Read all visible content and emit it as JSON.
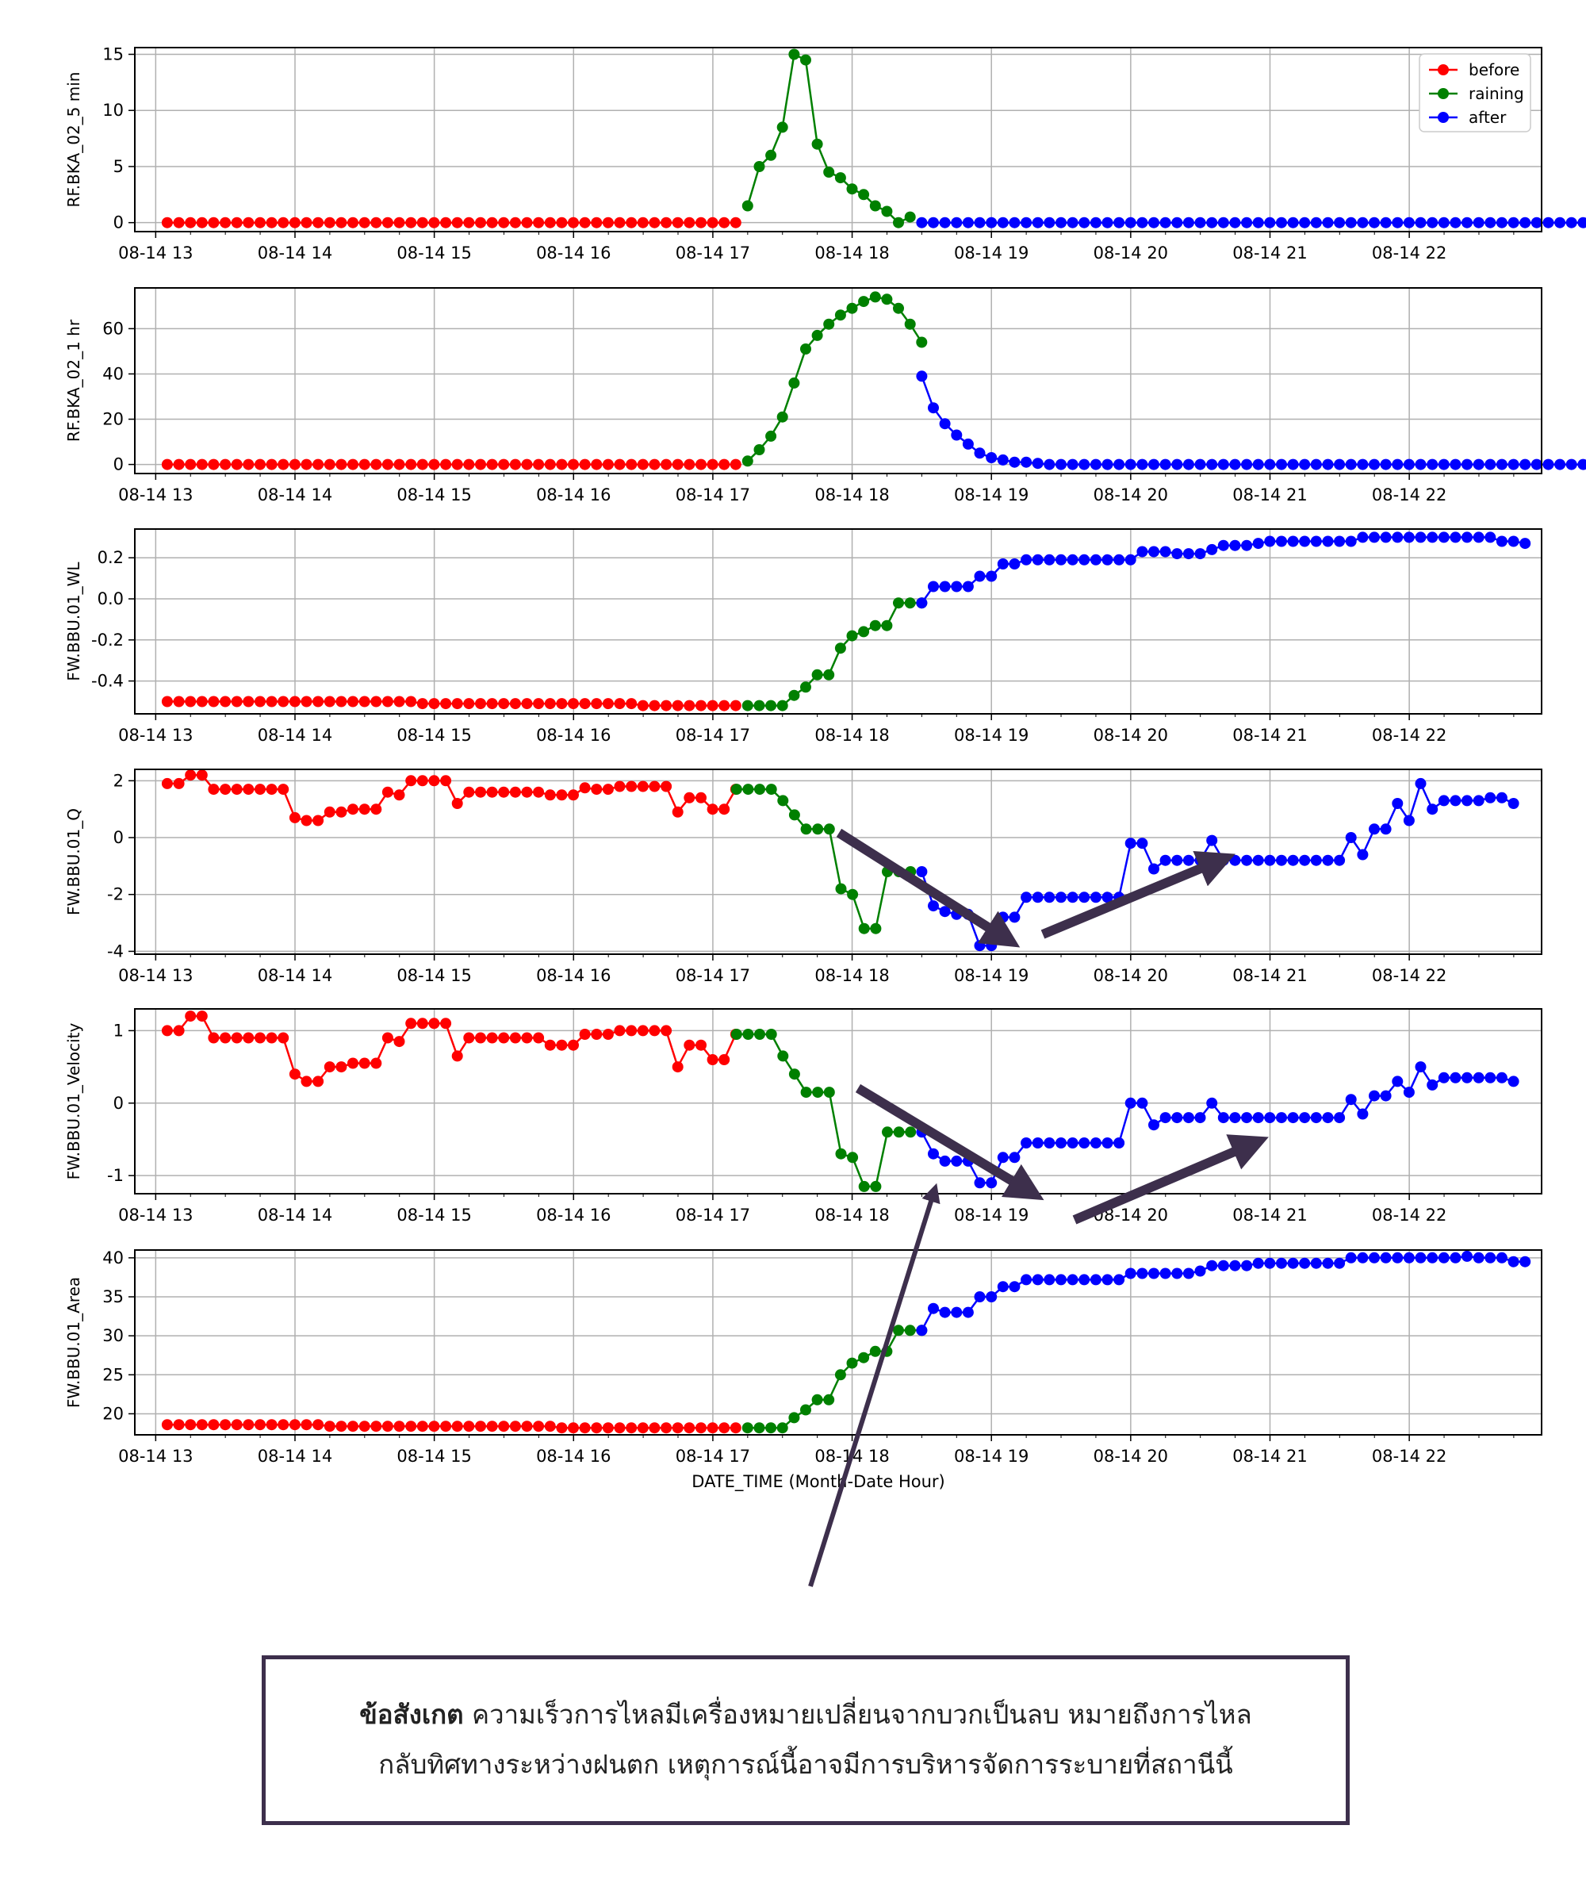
{
  "x_tick_labels": [
    "08-14 13",
    "08-14 14",
    "08-14 15",
    "08-14 16",
    "08-14 17",
    "08-14 18",
    "08-14 19",
    "08-14 20",
    "08-14 21",
    "08-14 22"
  ],
  "xlabel": "DATE_TIME (Month-Date Hour)",
  "legend": {
    "entries": [
      "before",
      "raining",
      "after"
    ],
    "placement": "top-right"
  },
  "colors": {
    "before": "#ff0000",
    "raining": "#008000",
    "after": "#0000ff",
    "arrow": "#3d2f4c"
  },
  "note": {
    "bold": "ข้อสังเกต",
    "line1": " ความเร็วการไหลมีเครื่องหมายเปลี่ยนจากบวกเป็นลบ หมายถึงการไหล",
    "line2": "กลับทิศทางระหว่างฝนตก เหตุการณ์นี้อาจมีการบริหารจัดการระบายที่สถานีนี้"
  },
  "chart_data": [
    {
      "type": "line",
      "ylabel": "RF.BKA_02_5 min",
      "ylim": [
        -0.8,
        15.6
      ],
      "yticks": [
        0,
        5,
        10,
        15
      ],
      "grid": true,
      "x_unit": "hour of 08-14 (decimal)",
      "series": [
        {
          "name": "before",
          "x_start": 13.083,
          "x_step": 0.0833,
          "values": [
            0,
            0,
            0,
            0,
            0,
            0,
            0,
            0,
            0,
            0,
            0,
            0,
            0,
            0,
            0,
            0,
            0,
            0,
            0,
            0,
            0,
            0,
            0,
            0,
            0,
            0,
            0,
            0,
            0,
            0,
            0,
            0,
            0,
            0,
            0,
            0,
            0,
            0,
            0,
            0,
            0,
            0,
            0,
            0,
            0,
            0,
            0,
            0,
            0,
            0
          ]
        },
        {
          "name": "raining",
          "x_start": 17.25,
          "x_step": 0.0833,
          "values": [
            1.5,
            5,
            6,
            8.5,
            15,
            14.5,
            7,
            4.5,
            4,
            3,
            2.5,
            1.5,
            1,
            0,
            0.5
          ]
        },
        {
          "name": "after",
          "x_start": 18.5,
          "x_step": 0.0833,
          "values": [
            0,
            0,
            0,
            0,
            0,
            0,
            0,
            0,
            0,
            0,
            0,
            0,
            0,
            0,
            0,
            0,
            0,
            0,
            0,
            0,
            0,
            0,
            0,
            0,
            0,
            0,
            0,
            0,
            0,
            0,
            0,
            0,
            0,
            0,
            0,
            0,
            0,
            0,
            0,
            0,
            0,
            0,
            0,
            0,
            0,
            0,
            0,
            0,
            0,
            0,
            0,
            0,
            0,
            0,
            0,
            0,
            0,
            0,
            0,
            0
          ]
        }
      ]
    },
    {
      "type": "line",
      "ylabel": "RF.BKA_02_1 hr",
      "ylim": [
        -4,
        78
      ],
      "yticks": [
        0,
        20,
        40,
        60
      ],
      "grid": true,
      "x_unit": "hour of 08-14 (decimal)",
      "series": [
        {
          "name": "before",
          "x_start": 13.083,
          "x_step": 0.0833,
          "values": [
            0,
            0,
            0,
            0,
            0,
            0,
            0,
            0,
            0,
            0,
            0,
            0,
            0,
            0,
            0,
            0,
            0,
            0,
            0,
            0,
            0,
            0,
            0,
            0,
            0,
            0,
            0,
            0,
            0,
            0,
            0,
            0,
            0,
            0,
            0,
            0,
            0,
            0,
            0,
            0,
            0,
            0,
            0,
            0,
            0,
            0,
            0,
            0,
            0,
            0
          ]
        },
        {
          "name": "raining",
          "x_start": 17.25,
          "x_step": 0.0833,
          "values": [
            1.5,
            6.5,
            12.5,
            21,
            36,
            51,
            57,
            62,
            66,
            69,
            72,
            74,
            73,
            69,
            62,
            54
          ]
        },
        {
          "name": "after",
          "x_start": 18.5,
          "x_step": 0.0833,
          "values": [
            39,
            25,
            18,
            13,
            9,
            5,
            3,
            2,
            1,
            1,
            0.5,
            0,
            0,
            0,
            0,
            0,
            0,
            0,
            0,
            0,
            0,
            0,
            0,
            0,
            0,
            0,
            0,
            0,
            0,
            0,
            0,
            0,
            0,
            0,
            0,
            0,
            0,
            0,
            0,
            0,
            0,
            0,
            0,
            0,
            0,
            0,
            0,
            0,
            0,
            0,
            0,
            0,
            0,
            0,
            0,
            0,
            0,
            0,
            0,
            0
          ]
        }
      ]
    },
    {
      "type": "line",
      "ylabel": "FW.BBU.01_WL",
      "ylim": [
        -0.56,
        0.34
      ],
      "yticks": [
        -0.4,
        -0.2,
        0.0,
        0.2
      ],
      "grid": true,
      "x_unit": "hour of 08-14 (decimal)",
      "series": [
        {
          "name": "before",
          "x_start": 13.083,
          "x_step": 0.0833,
          "values": [
            -0.5,
            -0.5,
            -0.5,
            -0.5,
            -0.5,
            -0.5,
            -0.5,
            -0.5,
            -0.5,
            -0.5,
            -0.5,
            -0.5,
            -0.5,
            -0.5,
            -0.5,
            -0.5,
            -0.5,
            -0.5,
            -0.5,
            -0.5,
            -0.5,
            -0.5,
            -0.51,
            -0.51,
            -0.51,
            -0.51,
            -0.51,
            -0.51,
            -0.51,
            -0.51,
            -0.51,
            -0.51,
            -0.51,
            -0.51,
            -0.51,
            -0.51,
            -0.51,
            -0.51,
            -0.51,
            -0.51,
            -0.51,
            -0.52,
            -0.52,
            -0.52,
            -0.52,
            -0.52,
            -0.52,
            -0.52,
            -0.52,
            -0.52
          ]
        },
        {
          "name": "raining",
          "x_start": 17.25,
          "x_step": 0.0833,
          "values": [
            -0.52,
            -0.52,
            -0.52,
            -0.52,
            -0.47,
            -0.43,
            -0.37,
            -0.37,
            -0.24,
            -0.18,
            -0.16,
            -0.13,
            -0.13,
            -0.02,
            -0.02,
            -0.02
          ]
        },
        {
          "name": "after",
          "x_start": 18.5,
          "x_step": 0.0833,
          "values": [
            -0.02,
            0.06,
            0.06,
            0.06,
            0.06,
            0.11,
            0.11,
            0.17,
            0.17,
            0.19,
            0.19,
            0.19,
            0.19,
            0.19,
            0.19,
            0.19,
            0.19,
            0.19,
            0.19,
            0.23,
            0.23,
            0.23,
            0.22,
            0.22,
            0.22,
            0.24,
            0.26,
            0.26,
            0.26,
            0.27,
            0.28,
            0.28,
            0.28,
            0.28,
            0.28,
            0.28,
            0.28,
            0.28,
            0.3,
            0.3,
            0.3,
            0.3,
            0.3,
            0.3,
            0.3,
            0.3,
            0.3,
            0.3,
            0.3,
            0.3,
            0.28,
            0.28,
            0.27
          ]
        }
      ]
    },
    {
      "type": "line",
      "ylabel": "FW.BBU.01_Q",
      "ylim": [
        -4.1,
        2.4
      ],
      "yticks": [
        -4,
        -2,
        0,
        2
      ],
      "grid": true,
      "x_unit": "hour of 08-14 (decimal)",
      "series": [
        {
          "name": "before",
          "x_start": 13.083,
          "x_step": 0.0833,
          "values": [
            1.9,
            1.9,
            2.2,
            2.2,
            1.7,
            1.7,
            1.7,
            1.7,
            1.7,
            1.7,
            1.7,
            0.7,
            0.6,
            0.6,
            0.9,
            0.9,
            1.0,
            1.0,
            1.0,
            1.6,
            1.5,
            2.0,
            2.0,
            2.0,
            2.0,
            1.2,
            1.6,
            1.6,
            1.6,
            1.6,
            1.6,
            1.6,
            1.6,
            1.5,
            1.5,
            1.5,
            1.75,
            1.7,
            1.7,
            1.8,
            1.8,
            1.8,
            1.8,
            1.8,
            0.9,
            1.4,
            1.4,
            1.0,
            1.0,
            1.7
          ]
        },
        {
          "name": "raining",
          "x_start": 17.17,
          "x_step": 0.0833,
          "values": [
            1.7,
            1.7,
            1.7,
            1.7,
            1.3,
            0.8,
            0.3,
            0.3,
            0.3,
            -1.8,
            -2.0,
            -3.2,
            -3.2,
            -1.2,
            -1.2,
            -1.2
          ]
        },
        {
          "name": "after",
          "x_start": 18.5,
          "x_step": 0.0833,
          "values": [
            -1.2,
            -2.4,
            -2.6,
            -2.7,
            -2.7,
            -3.8,
            -3.8,
            -2.8,
            -2.8,
            -2.1,
            -2.1,
            -2.1,
            -2.1,
            -2.1,
            -2.1,
            -2.1,
            -2.1,
            -2.1,
            -0.2,
            -0.2,
            -1.1,
            -0.8,
            -0.8,
            -0.8,
            -0.8,
            -0.1,
            -0.8,
            -0.8,
            -0.8,
            -0.8,
            -0.8,
            -0.8,
            -0.8,
            -0.8,
            -0.8,
            -0.8,
            -0.8,
            0.0,
            -0.6,
            0.3,
            0.3,
            1.2,
            0.6,
            1.9,
            1.0,
            1.3,
            1.3,
            1.3,
            1.3,
            1.4,
            1.4,
            1.2
          ]
        }
      ]
    },
    {
      "type": "line",
      "ylabel": "FW.BBU.01_Velocity",
      "ylim": [
        -1.25,
        1.3
      ],
      "yticks": [
        -1,
        0,
        1
      ],
      "grid": true,
      "x_unit": "hour of 08-14 (decimal)",
      "series": [
        {
          "name": "before",
          "x_start": 13.083,
          "x_step": 0.0833,
          "values": [
            1.0,
            1.0,
            1.2,
            1.2,
            0.9,
            0.9,
            0.9,
            0.9,
            0.9,
            0.9,
            0.9,
            0.4,
            0.3,
            0.3,
            0.5,
            0.5,
            0.55,
            0.55,
            0.55,
            0.9,
            0.85,
            1.1,
            1.1,
            1.1,
            1.1,
            0.65,
            0.9,
            0.9,
            0.9,
            0.9,
            0.9,
            0.9,
            0.9,
            0.8,
            0.8,
            0.8,
            0.95,
            0.95,
            0.95,
            1.0,
            1.0,
            1.0,
            1.0,
            1.0,
            0.5,
            0.8,
            0.8,
            0.6,
            0.6,
            0.95
          ]
        },
        {
          "name": "raining",
          "x_start": 17.17,
          "x_step": 0.0833,
          "values": [
            0.95,
            0.95,
            0.95,
            0.95,
            0.65,
            0.4,
            0.15,
            0.15,
            0.15,
            -0.7,
            -0.75,
            -1.15,
            -1.15,
            -0.4,
            -0.4,
            -0.4
          ]
        },
        {
          "name": "after",
          "x_start": 18.5,
          "x_step": 0.0833,
          "values": [
            -0.4,
            -0.7,
            -0.8,
            -0.8,
            -0.8,
            -1.1,
            -1.1,
            -0.75,
            -0.75,
            -0.55,
            -0.55,
            -0.55,
            -0.55,
            -0.55,
            -0.55,
            -0.55,
            -0.55,
            -0.55,
            0.0,
            0.0,
            -0.3,
            -0.2,
            -0.2,
            -0.2,
            -0.2,
            0.0,
            -0.2,
            -0.2,
            -0.2,
            -0.2,
            -0.2,
            -0.2,
            -0.2,
            -0.2,
            -0.2,
            -0.2,
            -0.2,
            0.05,
            -0.15,
            0.1,
            0.1,
            0.3,
            0.15,
            0.5,
            0.25,
            0.35,
            0.35,
            0.35,
            0.35,
            0.35,
            0.35,
            0.3
          ]
        }
      ]
    },
    {
      "type": "line",
      "ylabel": "FW.BBU.01_Area",
      "ylim": [
        17.3,
        41
      ],
      "yticks": [
        20,
        25,
        30,
        35,
        40
      ],
      "grid": true,
      "x_unit": "hour of 08-14 (decimal)",
      "series": [
        {
          "name": "before",
          "x_start": 13.083,
          "x_step": 0.0833,
          "values": [
            18.6,
            18.6,
            18.6,
            18.6,
            18.6,
            18.6,
            18.6,
            18.6,
            18.6,
            18.6,
            18.6,
            18.6,
            18.6,
            18.6,
            18.4,
            18.4,
            18.4,
            18.4,
            18.4,
            18.4,
            18.4,
            18.4,
            18.4,
            18.4,
            18.4,
            18.4,
            18.4,
            18.4,
            18.4,
            18.4,
            18.4,
            18.4,
            18.4,
            18.4,
            18.2,
            18.2,
            18.2,
            18.2,
            18.2,
            18.2,
            18.2,
            18.2,
            18.2,
            18.2,
            18.2,
            18.2,
            18.2,
            18.2,
            18.2,
            18.2
          ]
        },
        {
          "name": "raining",
          "x_start": 17.25,
          "x_step": 0.0833,
          "values": [
            18.2,
            18.2,
            18.2,
            18.2,
            19.5,
            20.5,
            21.8,
            21.8,
            25,
            26.5,
            27.2,
            28,
            28,
            30.7,
            30.7,
            30.7
          ]
        },
        {
          "name": "after",
          "x_start": 18.5,
          "x_step": 0.0833,
          "values": [
            30.7,
            33.5,
            33,
            33,
            33,
            35,
            35,
            36.3,
            36.3,
            37.2,
            37.2,
            37.2,
            37.2,
            37.2,
            37.2,
            37.2,
            37.2,
            37.2,
            38,
            38,
            38,
            38,
            38,
            38,
            38.3,
            39,
            39,
            39,
            39,
            39.3,
            39.3,
            39.3,
            39.3,
            39.3,
            39.3,
            39.3,
            39.3,
            40,
            40,
            40,
            40,
            40,
            40,
            40,
            40,
            40,
            40,
            40.2,
            40,
            40,
            40,
            39.5,
            39.5
          ]
        }
      ]
    }
  ]
}
